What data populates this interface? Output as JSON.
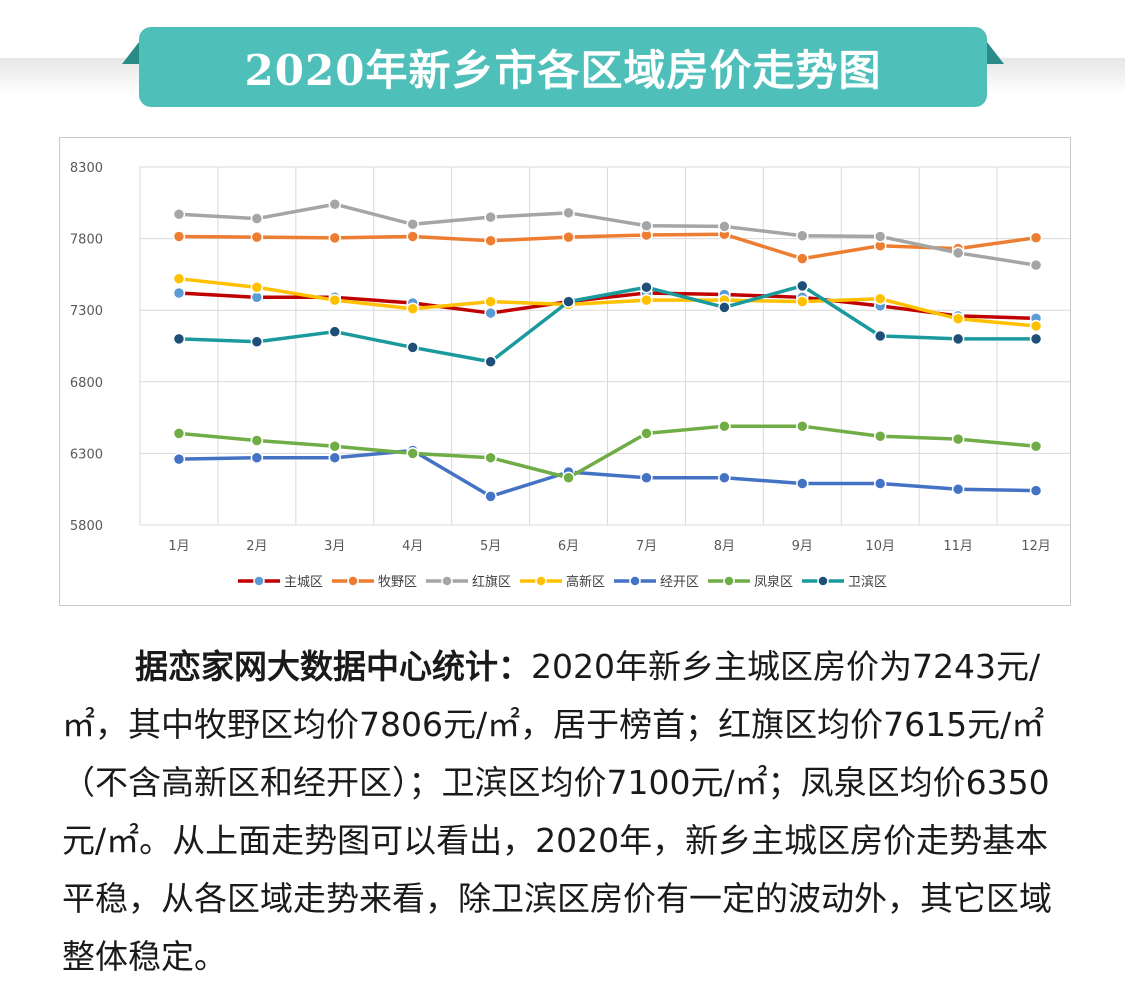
{
  "header": {
    "title": "2020年新乡市各区域房价走势图"
  },
  "chart_data": {
    "type": "line",
    "categories": [
      "1月",
      "2月",
      "3月",
      "4月",
      "5月",
      "6月",
      "7月",
      "8月",
      "9月",
      "10月",
      "11月",
      "12月"
    ],
    "ylim": [
      5800,
      8300
    ],
    "yticks": [
      5800,
      6300,
      6800,
      7300,
      7800,
      8300
    ],
    "grid": true,
    "legend_position": "bottom",
    "series": [
      {
        "name": "主城区",
        "color": "#c00000",
        "marker": "#5b9bd5",
        "values": [
          7420,
          7390,
          7390,
          7350,
          7280,
          7360,
          7420,
          7410,
          7390,
          7330,
          7260,
          7243
        ]
      },
      {
        "name": "牧野区",
        "color": "#ed7d31",
        "marker": "#ed7d31",
        "values": [
          7815,
          7810,
          7805,
          7815,
          7785,
          7810,
          7825,
          7830,
          7660,
          7750,
          7730,
          7806
        ]
      },
      {
        "name": "红旗区",
        "color": "#a5a5a5",
        "marker": "#a5a5a5",
        "values": [
          7970,
          7940,
          8040,
          7900,
          7950,
          7980,
          7890,
          7885,
          7820,
          7815,
          7700,
          7615
        ]
      },
      {
        "name": "高新区",
        "color": "#ffc000",
        "marker": "#ffc000",
        "values": [
          7520,
          7460,
          7370,
          7310,
          7360,
          7340,
          7370,
          7370,
          7360,
          7380,
          7240,
          7190
        ]
      },
      {
        "name": "经开区",
        "color": "#4472c4",
        "marker": "#4472c4",
        "values": [
          6260,
          6270,
          6270,
          6320,
          6000,
          6170,
          6130,
          6130,
          6090,
          6090,
          6050,
          6040
        ]
      },
      {
        "name": "凤泉区",
        "color": "#70ad47",
        "marker": "#70ad47",
        "values": [
          6440,
          6390,
          6350,
          6300,
          6270,
          6130,
          6440,
          6490,
          6490,
          6420,
          6400,
          6350
        ]
      },
      {
        "name": "卫滨区",
        "color": "#1a9a9c",
        "marker": "#1f4e79",
        "values": [
          7100,
          7080,
          7150,
          7040,
          6940,
          7360,
          7460,
          7320,
          7470,
          7120,
          7100,
          7100
        ]
      }
    ]
  },
  "paragraph": {
    "lead": "据恋家网大数据中心统计：",
    "rest": "2020年新乡主城区房价为7243元/㎡，其中牧野区均价7806元/㎡，居于榜首；红旗区均价7615元/㎡（不含高新区和经开区）；卫滨区均价7100元/㎡；凤泉区均价6350元/㎡。从上面走势图可以看出，2020年，新乡主城区房价走势基本平稳，从各区域走势来看，除卫滨区房价有一定的波动外，其它区域整体稳定。"
  }
}
